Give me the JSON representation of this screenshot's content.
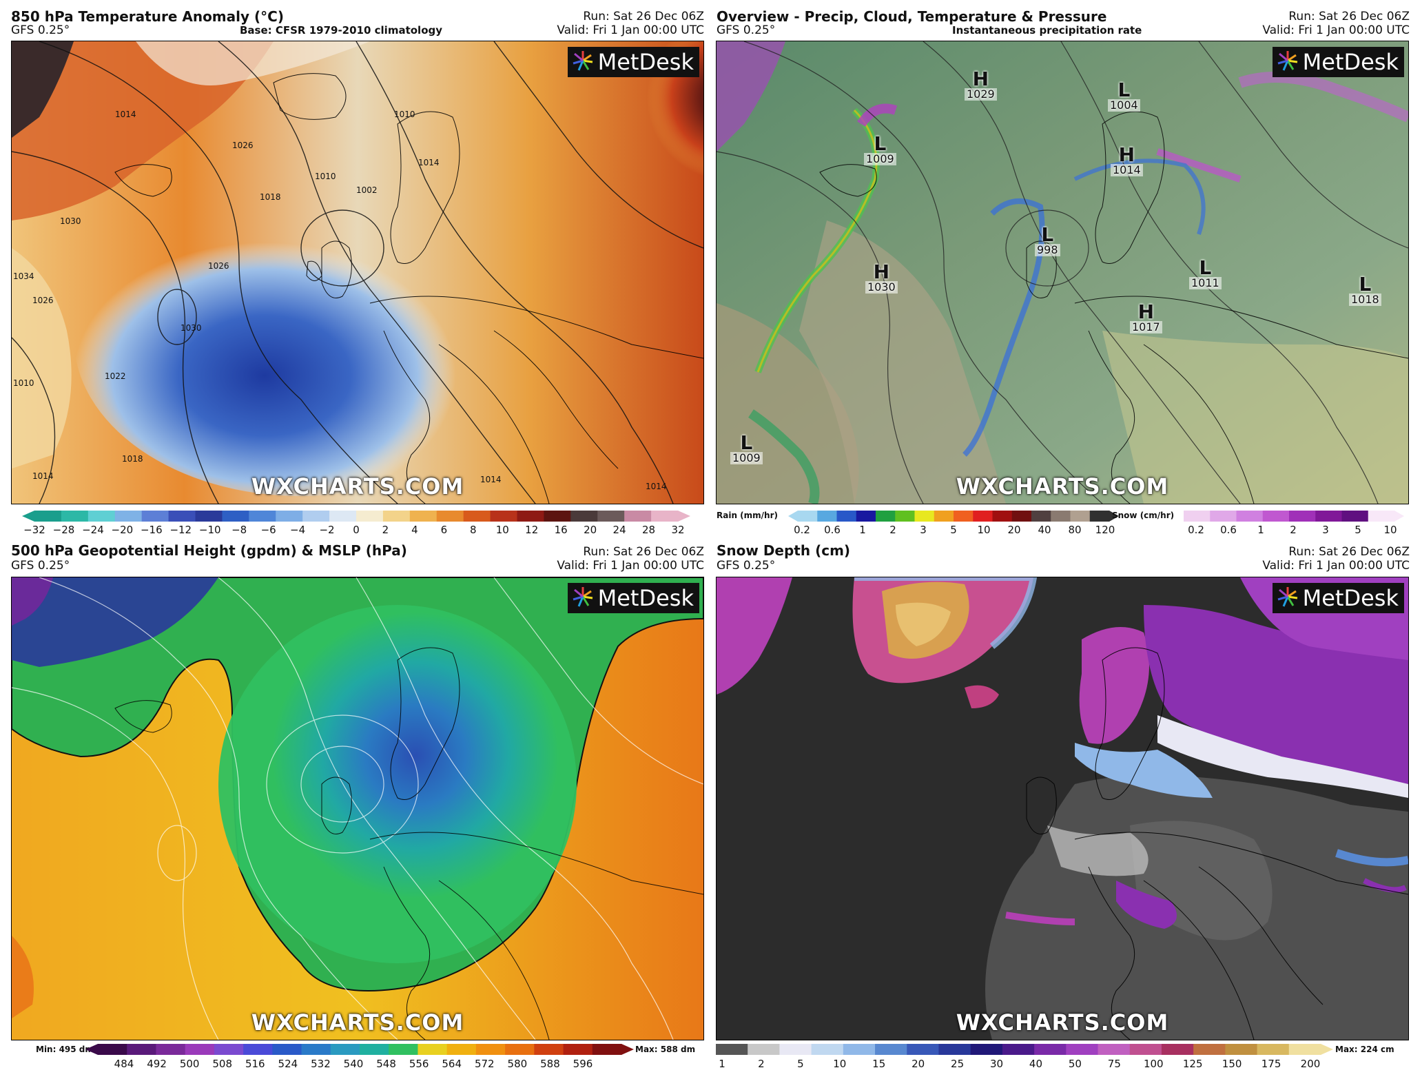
{
  "panels": {
    "temp": {
      "title": "850 hPa Temperature Anomaly (°C)",
      "model": "GFS 0.25°",
      "base": "Base: CFSR 1979-2010 climatology",
      "run": "Run: Sat 26 Dec 06Z",
      "valid": "Valid: Fri 1 Jan 00:00 UTC",
      "scale_ticks": [
        "−32",
        "−28",
        "−24",
        "−20",
        "−16",
        "−12",
        "−10",
        "−8",
        "−6",
        "−4",
        "−2",
        "0",
        "2",
        "4",
        "6",
        "8",
        "10",
        "12",
        "16",
        "20",
        "24",
        "28",
        "32"
      ],
      "isobar_labels": [
        "1014",
        "1026",
        "1030",
        "1034",
        "1026",
        "1010",
        "1014",
        "1018",
        "1022",
        "1030",
        "1026",
        "1018",
        "1010",
        "1002",
        "1014",
        "1010",
        "1014",
        "1014"
      ]
    },
    "overview": {
      "title": "Overview - Precip, Cloud, Temperature & Pressure",
      "model": "GFS 0.25°",
      "base": "Instantaneous precipitation rate",
      "run": "Run: Sat 26 Dec 06Z",
      "valid": "Valid: Fri 1 Jan 00:00 UTC",
      "rain_label": "Rain (mm/hr)",
      "rain_ticks": [
        "0.2",
        "0.6",
        "1",
        "2",
        "3",
        "5",
        "10",
        "20",
        "40",
        "80",
        "120"
      ],
      "snow_label": "Snow (cm/hr)",
      "snow_ticks": [
        "0.2",
        "0.6",
        "1",
        "2",
        "3",
        "5",
        "10"
      ],
      "pressure_centers": [
        {
          "type": "H",
          "value": "1029"
        },
        {
          "type": "L",
          "value": "1004"
        },
        {
          "type": "L",
          "value": "1009"
        },
        {
          "type": "H",
          "value": "1014"
        },
        {
          "type": "L",
          "value": "998"
        },
        {
          "type": "H",
          "value": "1030"
        },
        {
          "type": "L",
          "value": "1011"
        },
        {
          "type": "L",
          "value": "1018"
        },
        {
          "type": "H",
          "value": "1017"
        },
        {
          "type": "L",
          "value": "1009"
        }
      ]
    },
    "geo": {
      "title": "500 hPa Geopotential Height (gpdm) & MSLP (hPa)",
      "model": "GFS 0.25°",
      "run": "Run: Sat 26 Dec 06Z",
      "valid": "Valid: Fri 1 Jan 00:00 UTC",
      "min_label": "Min: 495 dm",
      "max_label": "Max: 588 dm",
      "scale_ticks": [
        "484",
        "492",
        "500",
        "508",
        "516",
        "524",
        "532",
        "540",
        "548",
        "556",
        "564",
        "572",
        "580",
        "588",
        "596"
      ]
    },
    "snow": {
      "title": "Snow Depth (cm)",
      "model": "GFS 0.25°",
      "run": "Run: Sat 26 Dec 06Z",
      "valid": "Valid: Fri 1 Jan 00:00 UTC",
      "max_label": "Max: 224 cm",
      "scale_ticks": [
        "1",
        "2",
        "5",
        "10",
        "15",
        "20",
        "25",
        "30",
        "40",
        "50",
        "75",
        "100",
        "125",
        "150",
        "175",
        "200"
      ]
    }
  },
  "branding": {
    "logo": "MetDesk",
    "watermark": "WXCHARTS.COM"
  },
  "colors": {
    "temp_scale": [
      "#1a9e8c",
      "#2cb8a6",
      "#5fcfd3",
      "#7fb2e6",
      "#5d7fd6",
      "#3a4fb8",
      "#2a3a9a",
      "#2e5fc4",
      "#4f86d8",
      "#7eaee6",
      "#b0cdef",
      "#dde8f4",
      "#f5ecd0",
      "#f3d38a",
      "#efb24f",
      "#e88a2e",
      "#d85a1c",
      "#b8321a",
      "#8e1a14",
      "#5c1410",
      "#4a3a3a",
      "#6b5a5a",
      "#c98aa4",
      "#e8b4c8"
    ],
    "geo_scale": [
      "#3a0a4a",
      "#5a1a7a",
      "#7a2a9a",
      "#9a3aba",
      "#7a4ad0",
      "#4a4ad8",
      "#2a5ac8",
      "#2a7ac8",
      "#2a9ac0",
      "#20b0a0",
      "#30c060",
      "#e8d020",
      "#f0b010",
      "#f09010",
      "#e87010",
      "#d04010",
      "#b02010",
      "#801010"
    ],
    "snow_scale": [
      "#555555",
      "#c8c8c8",
      "#e8e8f4",
      "#c0d8f0",
      "#90b8e8",
      "#5888d0",
      "#3858b8",
      "#28389a",
      "#201878",
      "#4a1a8a",
      "#7a2aa8",
      "#a040c0",
      "#c060c0",
      "#c05090",
      "#a83060",
      "#c07040",
      "#c09040",
      "#d8b860",
      "#f0e0a0"
    ],
    "rain_scale": [
      "#a8d8f0",
      "#58a8e0",
      "#2858c8",
      "#1818a0",
      "#20a040",
      "#60c020",
      "#e8e820",
      "#f0a020",
      "#f06020",
      "#e02020",
      "#a01010",
      "#701010",
      "#504040",
      "#8a7a70",
      "#b0a090",
      "#303030"
    ],
    "snow_rate_scale": [
      "#f0d0f0",
      "#e0a8e8",
      "#d080e0",
      "#c058d0",
      "#a030b8",
      "#801898",
      "#601080",
      "#f8e8f8"
    ]
  }
}
